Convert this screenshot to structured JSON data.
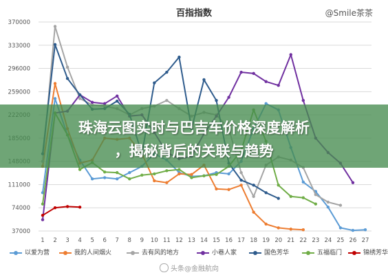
{
  "handle": "@Smile茶茶",
  "banner": {
    "line1": "珠海云图实时与巴吉车价格深度解析",
    "line2": "，揭秘背后的关联与趋势"
  },
  "watermark": "头条@金融航向",
  "colors": {
    "background": "#ffffff",
    "grid": "#d9d9d9",
    "banner": "#468c50"
  },
  "chart_data": {
    "type": "line",
    "title": "百指指数",
    "xlabel": "",
    "ylabel": "",
    "x": [
      1,
      2,
      3,
      4,
      5,
      6,
      7,
      8,
      9,
      10,
      11,
      12,
      13,
      14,
      15,
      16,
      17,
      18,
      19,
      20,
      21,
      22,
      23,
      24,
      25,
      26,
      27
    ],
    "y_ticks": [
      37000,
      74000,
      111000,
      148000,
      185000,
      222000,
      259000,
      296000,
      333000,
      370000
    ],
    "ylim": [
      37000,
      370000
    ],
    "grid": true,
    "legend_position": "bottom",
    "series": [
      {
        "name": "以爱为营",
        "color": "#5b9bd5",
        "values": [
          98000,
          248000,
          190000,
          150000,
          120000,
          122000,
          120000,
          130000,
          140000,
          160000,
          150000,
          130000,
          124000,
          125000,
          130000,
          128000,
          148000,
          200000,
          240000,
          230000,
          170000,
          115000,
          100000,
          75000,
          42000,
          38000,
          39000
        ]
      },
      {
        "name": "我的人间烟火",
        "color": "#ed7d31",
        "values": [
          140000,
          272000,
          200000,
          145000,
          150000,
          185000,
          183000,
          185000,
          160000,
          117000,
          114000,
          128000,
          127000,
          142000,
          104000,
          103000,
          110000,
          67000,
          48000,
          42000,
          40000,
          39000,
          null,
          null,
          null,
          null,
          null
        ]
      },
      {
        "name": "去有风的地方",
        "color": "#a5a5a5",
        "values": [
          148000,
          363000,
          298000,
          248000,
          238000,
          236000,
          232000,
          222000,
          232000,
          236000,
          245000,
          232000,
          220000,
          226000,
          222000,
          200000,
          130000,
          92000,
          142000,
          155000,
          150000,
          138000,
          95000,
          83000,
          78000,
          null,
          null
        ]
      },
      {
        "name": "小巷人家",
        "color": "#7030a0",
        "values": [
          55000,
          225000,
          228000,
          254000,
          242000,
          240000,
          252000,
          220000,
          222000,
          194000,
          162000,
          152000,
          156000,
          192000,
          220000,
          250000,
          290000,
          288000,
          275000,
          269000,
          318000,
          245000,
          185000,
          162000,
          145000,
          114000,
          null
        ]
      },
      {
        "name": "国色芳华",
        "color": "#2e5b8c",
        "values": [
          160000,
          334000,
          280000,
          254000,
          231000,
          232000,
          244000,
          223000,
          160000,
          273000,
          290000,
          314000,
          200000,
          278000,
          245000,
          145000,
          118000,
          110000,
          98000,
          89000,
          null,
          null,
          null,
          null,
          null,
          null,
          null
        ]
      },
      {
        "name": "五福临门",
        "color": "#70ad47",
        "values": [
          80000,
          225000,
          190000,
          135000,
          146000,
          131000,
          130000,
          120000,
          126000,
          128000,
          133000,
          135000,
          122000,
          125000,
          127000,
          140000,
          165000,
          230000,
          180000,
          110000,
          92000,
          90000,
          80000,
          null,
          null,
          null,
          null
        ]
      },
      {
        "name": "锦绣芳华",
        "color": "#c00000",
        "values": [
          62000,
          74000,
          76000,
          75000,
          null,
          null,
          null,
          null,
          null,
          null,
          null,
          null,
          null,
          null,
          null,
          null,
          null,
          null,
          null,
          null,
          null,
          null,
          null,
          null,
          null,
          null,
          null
        ]
      }
    ]
  }
}
